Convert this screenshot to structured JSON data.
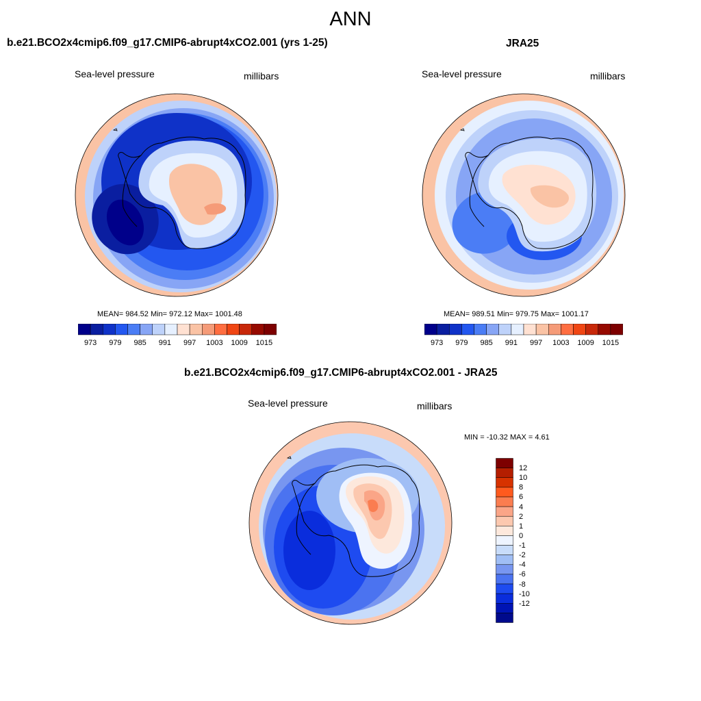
{
  "figure": {
    "title": "ANN",
    "panels": [
      {
        "title": "b.e21.BCO2x4cmip6.f09_g17.CMIP6-abrupt4xCO2.001 (yrs 1-25)",
        "left_label": "Sea-level pressure",
        "right_label": "millibars",
        "stats": "MEAN= 984.52  Min= 972.12  Max= 1001.48"
      },
      {
        "title": "JRA25",
        "left_label": "Sea-level pressure",
        "right_label": "millibars",
        "stats": "MEAN= 989.51  Min= 979.75  Max= 1001.17"
      },
      {
        "title": "b.e21.BCO2x4cmip6.f09_g17.CMIP6-abrupt4xCO2.001 - JRA25",
        "left_label": "Sea-level pressure",
        "right_label": "millibars",
        "stats": "MIN = -10.32 MAX =   4.61"
      }
    ],
    "abs_colorbar": {
      "colors": [
        "#00008a",
        "#0a1ea0",
        "#0f32c8",
        "#2357f0",
        "#4b7df5",
        "#87a5f5",
        "#bed2fa",
        "#e6f0ff",
        "#ffe1d2",
        "#fac3a5",
        "#f59b78",
        "#ff6e41",
        "#f04614",
        "#c8280a",
        "#960a00",
        "#7d0000"
      ],
      "tick_labels": [
        "973",
        "979",
        "985",
        "991",
        "997",
        "1003",
        "1009",
        "1015"
      ]
    },
    "diff_colorbar": {
      "colors_top_to_bottom": [
        "#7d0000",
        "#b41e00",
        "#d73200",
        "#ff5a1e",
        "#fa7d50",
        "#faa587",
        "#fcc8af",
        "#fde8dc",
        "#eef4ff",
        "#c8dcfa",
        "#a0bef5",
        "#7896f0",
        "#4b73f0",
        "#1e4bf0",
        "#0a2ddc",
        "#0014b4",
        "#000a8c"
      ],
      "tick_labels": [
        "12",
        "10",
        "8",
        "6",
        "4",
        "2",
        "1",
        "0",
        "-1",
        "-2",
        "-4",
        "-6",
        "-8",
        "-10",
        "-12"
      ]
    },
    "map_fields": [
      {
        "name": "model",
        "levels": [
          {
            "color": "#fac3a5"
          },
          {
            "color": "#bed2fa"
          },
          {
            "color": "#87a5f5"
          },
          {
            "color": "#4b7df5"
          },
          {
            "color": "#2357f0"
          },
          {
            "color": "#0f32c8"
          },
          {
            "color": "#0a1ea0"
          },
          {
            "color": "#bed2fa"
          },
          {
            "color": "#e6f0ff"
          },
          {
            "color": "#fac3a5"
          },
          {
            "color": "#f59b78"
          },
          {
            "color": "#00008a"
          }
        ]
      },
      {
        "name": "jra25",
        "levels": [
          {
            "color": "#fac3a5"
          },
          {
            "color": "#e6f0ff"
          },
          {
            "color": "#bed2fa"
          },
          {
            "color": "#87a5f5"
          },
          {
            "color": "#4b7df5"
          },
          {
            "color": "#2357f0"
          },
          {
            "color": "#bed2fa"
          },
          {
            "color": "#e6f0ff"
          },
          {
            "color": "#ffe1d2"
          },
          {
            "color": "#fac3a5"
          }
        ]
      },
      {
        "name": "difference",
        "levels": [
          {
            "color": "#fcc8af"
          },
          {
            "color": "#c8dcfa"
          },
          {
            "color": "#7896f0"
          },
          {
            "color": "#4b73f0"
          },
          {
            "color": "#1e4bf0"
          },
          {
            "color": "#0a2ddc"
          },
          {
            "color": "#a0bef5"
          },
          {
            "color": "#eef4ff"
          },
          {
            "color": "#fde8dc"
          },
          {
            "color": "#fcc8af"
          },
          {
            "color": "#faa587"
          },
          {
            "color": "#fa7d50"
          }
        ]
      }
    ]
  }
}
